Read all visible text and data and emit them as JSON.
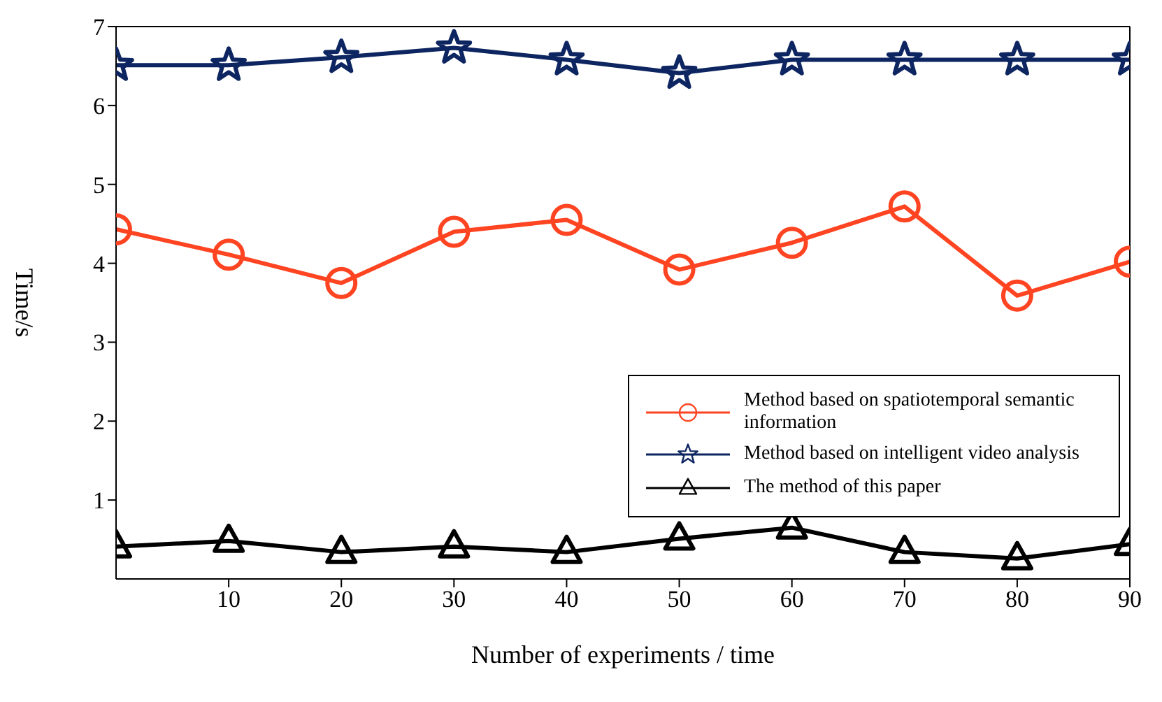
{
  "chart_data": {
    "type": "line",
    "xlabel": "Number of experiments / time",
    "ylabel": "Time/s",
    "x": [
      0,
      10,
      20,
      30,
      40,
      50,
      60,
      70,
      80,
      90
    ],
    "series": [
      {
        "name": "Method based on spatiotemporal semantic information",
        "color": "#ff4422",
        "marker": "circle",
        "values": [
          4.43,
          4.11,
          3.75,
          4.4,
          4.55,
          3.92,
          4.26,
          4.72,
          3.59,
          4.02
        ]
      },
      {
        "name": "Method based on intelligent video analysis",
        "color": "#0d2560",
        "marker": "star",
        "values": [
          6.51,
          6.51,
          6.61,
          6.73,
          6.58,
          6.41,
          6.58,
          6.58,
          6.58,
          6.58
        ]
      },
      {
        "name": "The method of this paper",
        "color": "#000000",
        "marker": "triangle",
        "values": [
          0.41,
          0.48,
          0.34,
          0.41,
          0.34,
          0.51,
          0.65,
          0.34,
          0.26,
          0.44
        ]
      }
    ],
    "xlim": [
      0,
      90
    ],
    "xticks": [
      10,
      20,
      30,
      40,
      50,
      60,
      70,
      80,
      90
    ],
    "ylim": [
      0,
      7
    ],
    "yticks": [
      1,
      2,
      3,
      4,
      5,
      6,
      7
    ],
    "grid": false,
    "legend": "bottom right",
    "line_style": "solid"
  }
}
